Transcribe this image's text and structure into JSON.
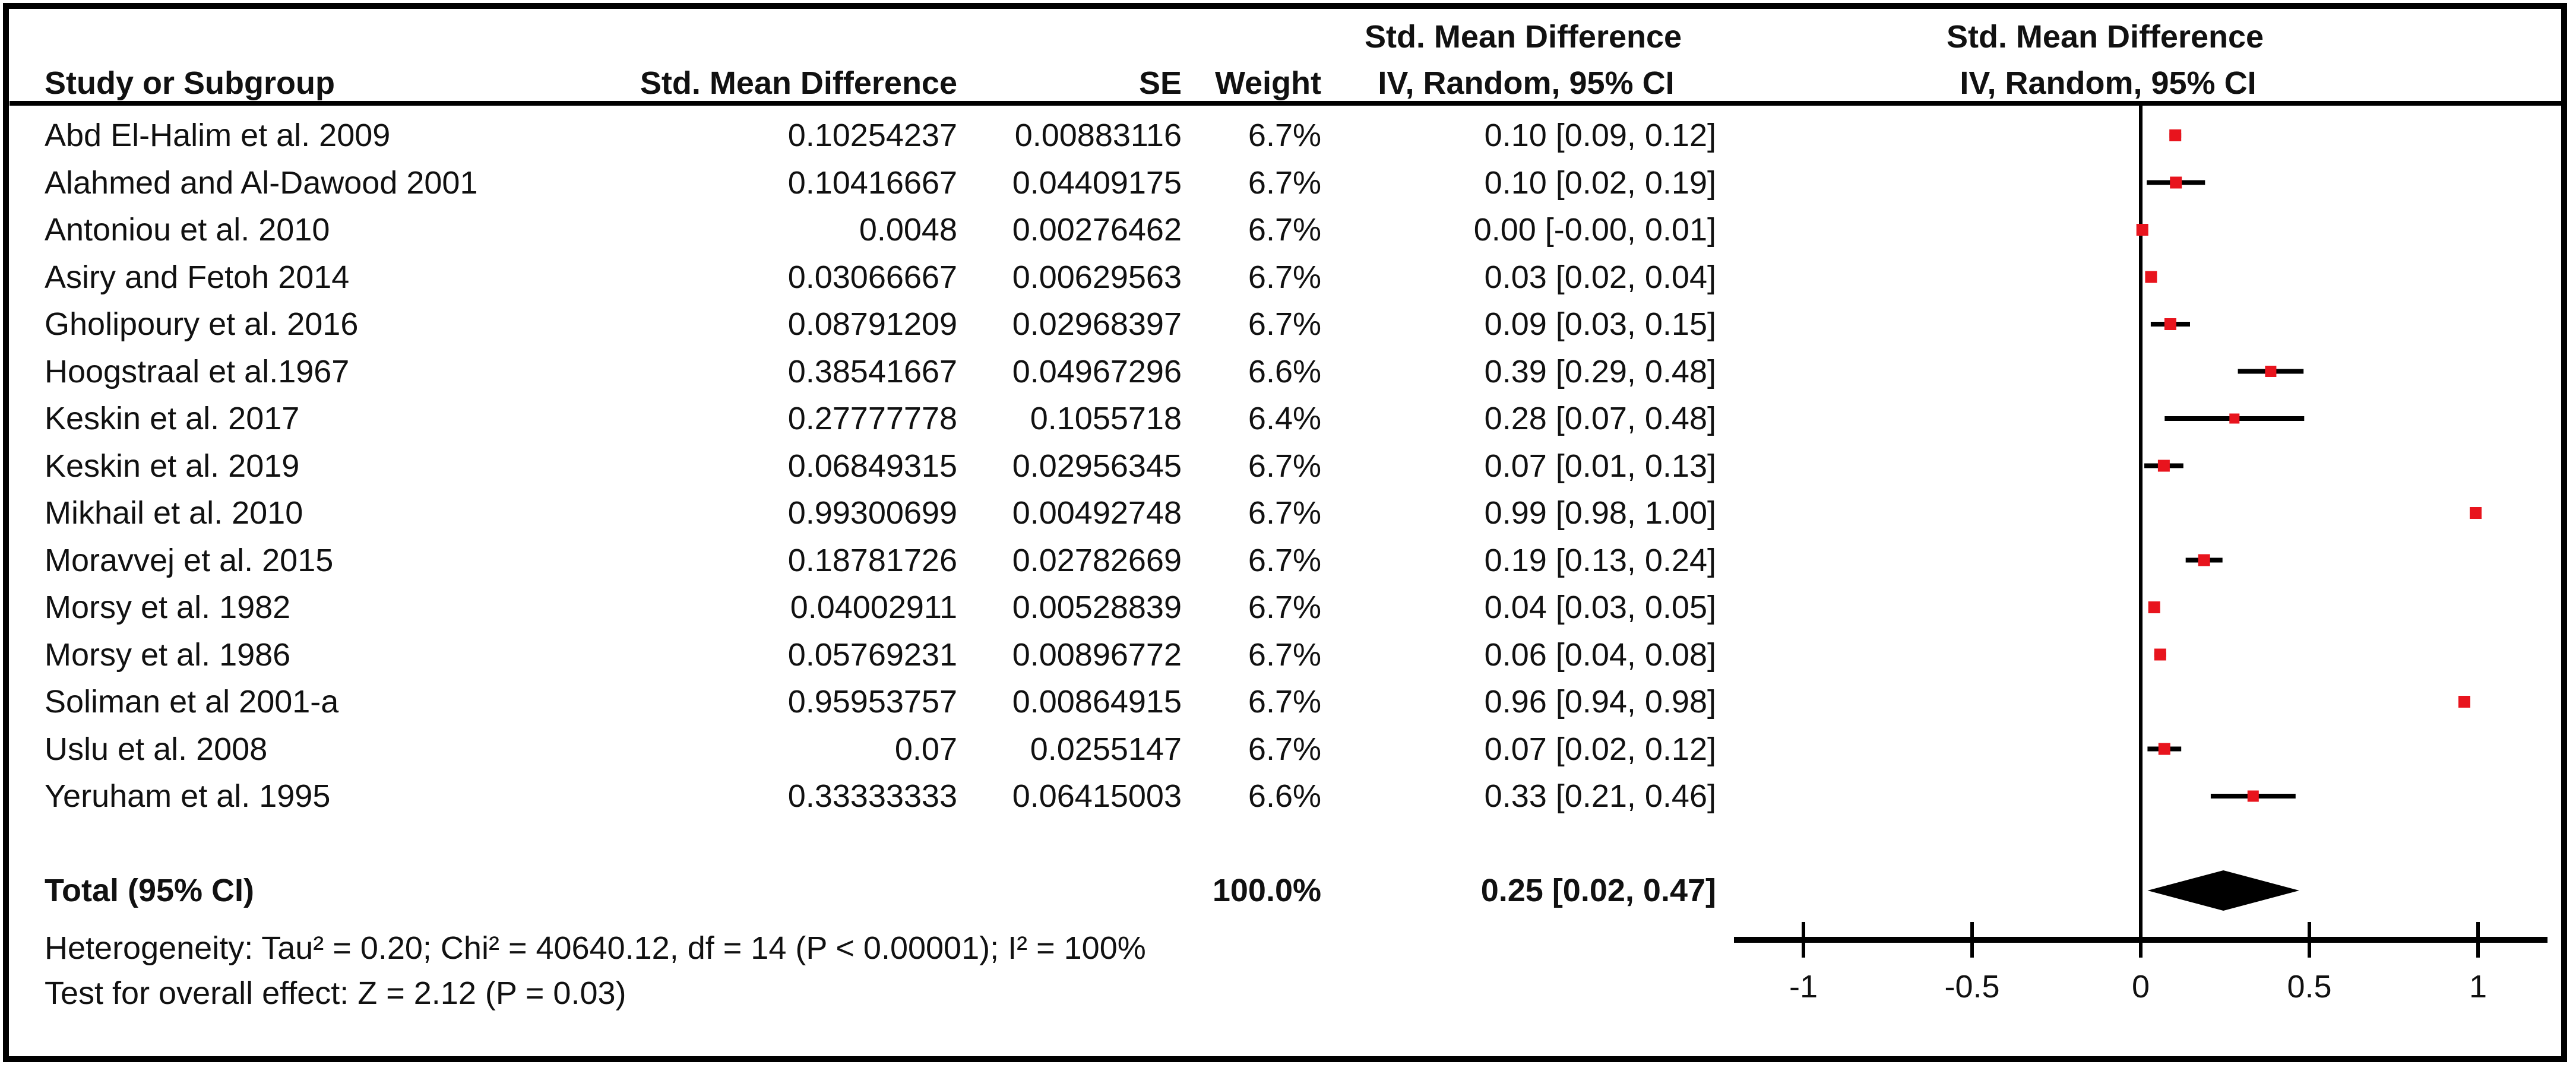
{
  "header": {
    "study_col": "Study or Subgroup",
    "smd_col": "Std. Mean Difference",
    "se_col": "SE",
    "weight_col": "Weight",
    "ci_col_line1": "Std. Mean Difference",
    "ci_col_line2": "IV, Random, 95% CI",
    "plot_col_line1": "Std. Mean Difference",
    "plot_col_line2": "IV, Random, 95% CI"
  },
  "table": {
    "rows": [
      {
        "study": "Abd El-Halim et al. 2009",
        "smd": "0.10254237",
        "se": "0.00883116",
        "weight": "6.7%",
        "ci": "0.10 [0.09, 0.12]"
      },
      {
        "study": "Alahmed and Al-Dawood 2001",
        "smd": "0.10416667",
        "se": "0.04409175",
        "weight": "6.7%",
        "ci": "0.10 [0.02, 0.19]"
      },
      {
        "study": "Antoniou et al. 2010",
        "smd": "0.0048",
        "se": "0.00276462",
        "weight": "6.7%",
        "ci": "0.00 [-0.00, 0.01]"
      },
      {
        "study": "Asiry and Fetoh 2014",
        "smd": "0.03066667",
        "se": "0.00629563",
        "weight": "6.7%",
        "ci": "0.03 [0.02, 0.04]"
      },
      {
        "study": "Gholipoury et al. 2016",
        "smd": "0.08791209",
        "se": "0.02968397",
        "weight": "6.7%",
        "ci": "0.09 [0.03, 0.15]"
      },
      {
        "study": "Hoogstraal et al.1967",
        "smd": "0.38541667",
        "se": "0.04967296",
        "weight": "6.6%",
        "ci": "0.39 [0.29, 0.48]"
      },
      {
        "study": "Keskin et al. 2017",
        "smd": "0.27777778",
        "se": "0.1055718",
        "weight": "6.4%",
        "ci": "0.28 [0.07, 0.48]"
      },
      {
        "study": "Keskin et al. 2019",
        "smd": "0.06849315",
        "se": "0.02956345",
        "weight": "6.7%",
        "ci": "0.07 [0.01, 0.13]"
      },
      {
        "study": "Mikhail et al. 2010",
        "smd": "0.99300699",
        "se": "0.00492748",
        "weight": "6.7%",
        "ci": "0.99 [0.98, 1.00]"
      },
      {
        "study": "Moravvej et al. 2015",
        "smd": "0.18781726",
        "se": "0.02782669",
        "weight": "6.7%",
        "ci": "0.19 [0.13, 0.24]"
      },
      {
        "study": "Morsy et al. 1982",
        "smd": "0.04002911",
        "se": "0.00528839",
        "weight": "6.7%",
        "ci": "0.04 [0.03, 0.05]"
      },
      {
        "study": "Morsy et al. 1986",
        "smd": "0.05769231",
        "se": "0.00896772",
        "weight": "6.7%",
        "ci": "0.06 [0.04, 0.08]"
      },
      {
        "study": "Soliman et al 2001-a",
        "smd": "0.95953757",
        "se": "0.00864915",
        "weight": "6.7%",
        "ci": "0.96 [0.94, 0.98]"
      },
      {
        "study": "Uslu et al. 2008",
        "smd": "0.07",
        "se": "0.0255147",
        "weight": "6.7%",
        "ci": "0.07 [0.02, 0.12]"
      },
      {
        "study": "Yeruham et al. 1995",
        "smd": "0.33333333",
        "se": "0.06415003",
        "weight": "6.6%",
        "ci": "0.33 [0.21, 0.46]"
      }
    ]
  },
  "total": {
    "label": "Total (95% CI)",
    "weight": "100.0%",
    "ci": "0.25 [0.02, 0.47]"
  },
  "footer": {
    "heterogeneity": "Heterogeneity: Tau² = 0.20; Chi² = 40640.12, df = 14 (P < 0.00001); I² = 100%",
    "overall_effect": "Test for overall effect: Z = 2.12 (P = 0.03)"
  },
  "chart_data": {
    "type": "scatter",
    "subtype": "forest-plot",
    "title": "Std. Mean Difference  IV, Random, 95% CI",
    "xlabel": "Std. Mean Difference",
    "x_ticks": [
      -1,
      -0.5,
      0,
      0.5,
      1
    ],
    "x_tick_labels": [
      "-1",
      "-0.5",
      "0",
      "0.5",
      "1"
    ],
    "xlim": [
      -1.2,
      1.28
    ],
    "grid": false,
    "legend": "none",
    "studies": [
      "Abd El-Halim et al. 2009",
      "Alahmed and Al-Dawood 2001",
      "Antoniou et al. 2010",
      "Asiry and Fetoh 2014",
      "Gholipoury et al. 2016",
      "Hoogstraal et al.1967",
      "Keskin et al. 2017",
      "Keskin et al. 2019",
      "Mikhail et al. 2010",
      "Moravvej et al. 2015",
      "Morsy et al. 1982",
      "Morsy et al. 1986",
      "Soliman et al 2001-a",
      "Uslu et al. 2008",
      "Yeruham et al. 1995"
    ],
    "estimates": [
      0.1025,
      0.1042,
      0.0048,
      0.0307,
      0.0879,
      0.3854,
      0.2778,
      0.0685,
      0.993,
      0.1878,
      0.04,
      0.0577,
      0.9595,
      0.07,
      0.3333
    ],
    "ci_low": [
      0.0852,
      0.0178,
      -0.0006,
      0.0183,
      0.0297,
      0.2881,
      0.0709,
      0.0105,
      0.9833,
      0.1333,
      0.0297,
      0.0401,
      0.9426,
      0.02,
      0.2076
    ],
    "ci_high": [
      0.1198,
      0.1906,
      0.0102,
      0.043,
      0.1461,
      0.4828,
      0.4847,
      0.1264,
      1.0027,
      0.2424,
      0.0504,
      0.0753,
      0.9765,
      0.12,
      0.4591
    ],
    "weights_pct": [
      6.7,
      6.7,
      6.7,
      6.7,
      6.7,
      6.6,
      6.4,
      6.7,
      6.7,
      6.7,
      6.7,
      6.7,
      6.7,
      6.7,
      6.6
    ],
    "total": {
      "estimate": 0.25,
      "ci_low": 0.02,
      "ci_high": 0.47,
      "weight_pct": 100.0
    }
  },
  "colors": {
    "marker_red": "#e8141d",
    "diamond_black": "#000000",
    "line_black": "#000000",
    "text": "#111111",
    "background": "#ffffff"
  }
}
